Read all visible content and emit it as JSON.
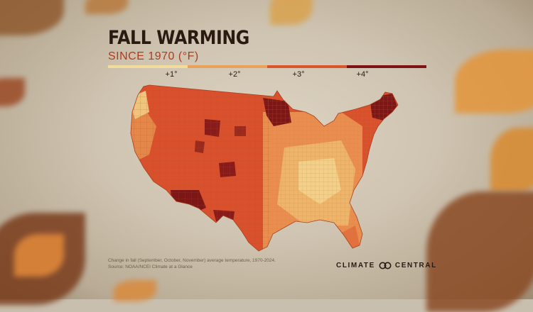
{
  "title": "FALL WARMING",
  "subtitle": "SINCE 1970 (°F)",
  "legend": {
    "ticks": [
      "+1°",
      "+2°",
      "+3°",
      "+4°"
    ],
    "colors": [
      "#f2dc9c",
      "#e9a25a",
      "#d9552b",
      "#7d1313"
    ]
  },
  "caption": {
    "line1": "Change in fall (September, October, November) average temperature, 1970-2024.",
    "line2": "Source: NOAA/NCEI Climate at a Glance"
  },
  "brand": {
    "left": "CLIMATE",
    "right": "CENTRAL",
    "logo_icon": "linked-rings-icon"
  },
  "map": {
    "region": "contiguous-united-states",
    "palette": {
      "plus1": "#efcf86",
      "plus2": "#e58a4a",
      "plus3": "#d34a2a",
      "plus4": "#7b1616"
    }
  }
}
